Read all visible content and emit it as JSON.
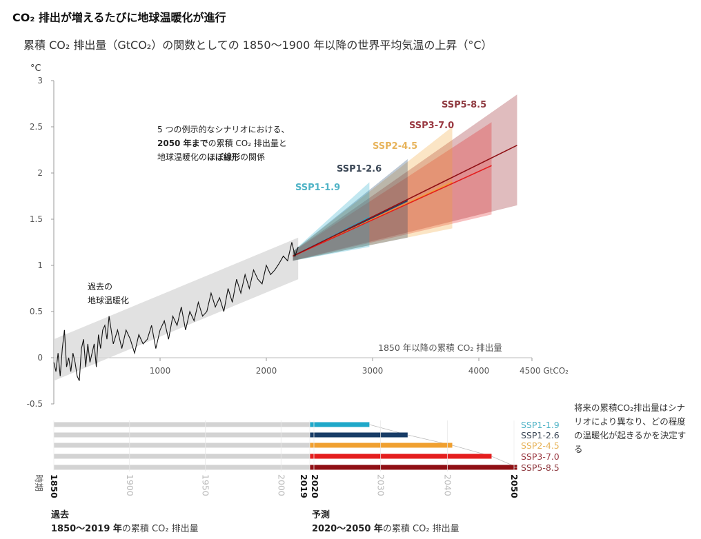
{
  "title": "CO₂ 排出が増えるたびに地球温暖化が進行",
  "subtitle": "累積 CO₂ 排出量（GtCO₂）の関数としての 1850～1900 年以降の世界平均気温の上昇（°C）",
  "annotations": {
    "scenario_note_1": "5 つの例示的なシナリオにおける、",
    "scenario_note_2a": "2050 年まで",
    "scenario_note_2b": "の累積 CO₂ 排出量と",
    "scenario_note_3a": "地球温暖化の",
    "scenario_note_3b": "ほぼ線形",
    "scenario_note_3c": "の関係",
    "past_warming_1": "過去の",
    "past_warming_2": "地球温暖化",
    "xaxis_caption": "1850 年以降の累積 CO₂ 排出量",
    "future_note": "将来の累積CO₂排出量はシナリオにより異なり、どの程度の温暖化が起きるかを決定する",
    "period_label": "時期",
    "past_heading": "過去",
    "past_range": "1850～2019 年",
    "past_suffix": "の累積 CO₂ 排出量",
    "future_heading": "予測",
    "future_range": "2020～2050 年",
    "future_suffix": "の累積 CO₂ 排出量"
  },
  "chart_data": [
    {
      "type": "line",
      "ylabel": "°C",
      "xlabel": "GtCO₂",
      "xlim": [
        0,
        4500
      ],
      "ylim": [
        -0.5,
        3
      ],
      "xticks": [
        1000,
        2000,
        3000,
        4000,
        4500
      ],
      "xtick_labels": [
        "1000",
        "2000",
        "3000",
        "4000",
        "4500 GtCO₂"
      ],
      "yticks": [
        -0.5,
        0,
        0.5,
        1,
        1.5,
        2,
        2.5,
        3
      ],
      "ytick_labels": [
        "-0.5",
        "0",
        "0.5",
        "1",
        "1.5",
        "2",
        "2.5",
        "3"
      ],
      "historical": {
        "color": "#111111",
        "band_color": "#d9d9d9",
        "points": [
          [
            0,
            -0.05
          ],
          [
            20,
            -0.15
          ],
          [
            40,
            0.05
          ],
          [
            60,
            -0.2
          ],
          [
            80,
            0.1
          ],
          [
            100,
            0.3
          ],
          [
            120,
            -0.1
          ],
          [
            140,
            0.0
          ],
          [
            160,
            -0.15
          ],
          [
            180,
            0.05
          ],
          [
            200,
            -0.05
          ],
          [
            220,
            -0.2
          ],
          [
            240,
            -0.25
          ],
          [
            260,
            0.1
          ],
          [
            280,
            0.2
          ],
          [
            300,
            -0.1
          ],
          [
            320,
            0.15
          ],
          [
            340,
            -0.05
          ],
          [
            360,
            0.05
          ],
          [
            380,
            0.15
          ],
          [
            400,
            -0.1
          ],
          [
            420,
            0.25
          ],
          [
            440,
            0.1
          ],
          [
            460,
            0.3
          ],
          [
            480,
            0.35
          ],
          [
            500,
            0.2
          ],
          [
            520,
            0.45
          ],
          [
            540,
            0.3
          ],
          [
            560,
            0.15
          ],
          [
            600,
            0.3
          ],
          [
            640,
            0.1
          ],
          [
            680,
            0.3
          ],
          [
            720,
            0.2
          ],
          [
            760,
            0.05
          ],
          [
            800,
            0.25
          ],
          [
            840,
            0.15
          ],
          [
            880,
            0.2
          ],
          [
            920,
            0.35
          ],
          [
            960,
            0.1
          ],
          [
            1000,
            0.3
          ],
          [
            1040,
            0.4
          ],
          [
            1080,
            0.2
          ],
          [
            1120,
            0.45
          ],
          [
            1160,
            0.35
          ],
          [
            1200,
            0.55
          ],
          [
            1240,
            0.3
          ],
          [
            1280,
            0.5
          ],
          [
            1320,
            0.4
          ],
          [
            1360,
            0.6
          ],
          [
            1400,
            0.45
          ],
          [
            1440,
            0.5
          ],
          [
            1480,
            0.7
          ],
          [
            1520,
            0.55
          ],
          [
            1560,
            0.65
          ],
          [
            1600,
            0.5
          ],
          [
            1640,
            0.75
          ],
          [
            1680,
            0.6
          ],
          [
            1720,
            0.85
          ],
          [
            1760,
            0.7
          ],
          [
            1800,
            0.9
          ],
          [
            1840,
            0.75
          ],
          [
            1880,
            0.95
          ],
          [
            1920,
            0.85
          ],
          [
            1960,
            0.8
          ],
          [
            2000,
            1.0
          ],
          [
            2040,
            0.9
          ],
          [
            2080,
            0.95
          ],
          [
            2120,
            1.02
          ],
          [
            2160,
            1.1
          ],
          [
            2200,
            1.05
          ],
          [
            2240,
            1.25
          ],
          [
            2270,
            1.1
          ],
          [
            2300,
            1.2
          ]
        ]
      },
      "series": [
        {
          "name": "SSP1-1.9",
          "color": "#1fa8c9",
          "label_color": "#4fb3c6",
          "start": [
            2250,
            1.1
          ],
          "end": [
            2970,
            1.52
          ],
          "band_low": 1.2,
          "band_high": 1.9
        },
        {
          "name": "SSP1-2.6",
          "color": "#173c66",
          "label_color": "#3b4756",
          "start": [
            2250,
            1.1
          ],
          "end": [
            3330,
            1.7
          ],
          "band_low": 1.3,
          "band_high": 2.15
        },
        {
          "name": "SSP2-4.5",
          "color": "#f0a030",
          "label_color": "#e7b35a",
          "start": [
            2250,
            1.1
          ],
          "end": [
            3750,
            1.9
          ],
          "band_low": 1.4,
          "band_high": 2.5
        },
        {
          "name": "SSP3-7.0",
          "color": "#e41e1e",
          "label_color": "#9a3942",
          "start": [
            2250,
            1.1
          ],
          "end": [
            4120,
            2.08
          ],
          "band_low": 1.55,
          "band_high": 2.55
        },
        {
          "name": "SSP5-8.5",
          "color": "#8f0f14",
          "label_color": "#8f3a40",
          "start": [
            2250,
            1.1
          ],
          "end": [
            4360,
            2.3
          ],
          "band_low": 1.65,
          "band_high": 2.85
        }
      ]
    },
    {
      "type": "bar",
      "xlabel": "時期",
      "year_ticks": [
        1850,
        1900,
        1950,
        2000,
        2019,
        2020,
        2030,
        2040,
        2050
      ],
      "bold_ticks": [
        1850,
        2019,
        2020,
        2050
      ],
      "past_color": "#d3d3d3",
      "bars": [
        {
          "name": "SSP1-1.9",
          "cumulative_end": 2970
        },
        {
          "name": "SSP1-2.6",
          "cumulative_end": 3330
        },
        {
          "name": "SSP2-4.5",
          "cumulative_end": 3750
        },
        {
          "name": "SSP3-7.0",
          "cumulative_end": 4120
        },
        {
          "name": "SSP5-8.5",
          "cumulative_end": 4360
        }
      ]
    }
  ]
}
